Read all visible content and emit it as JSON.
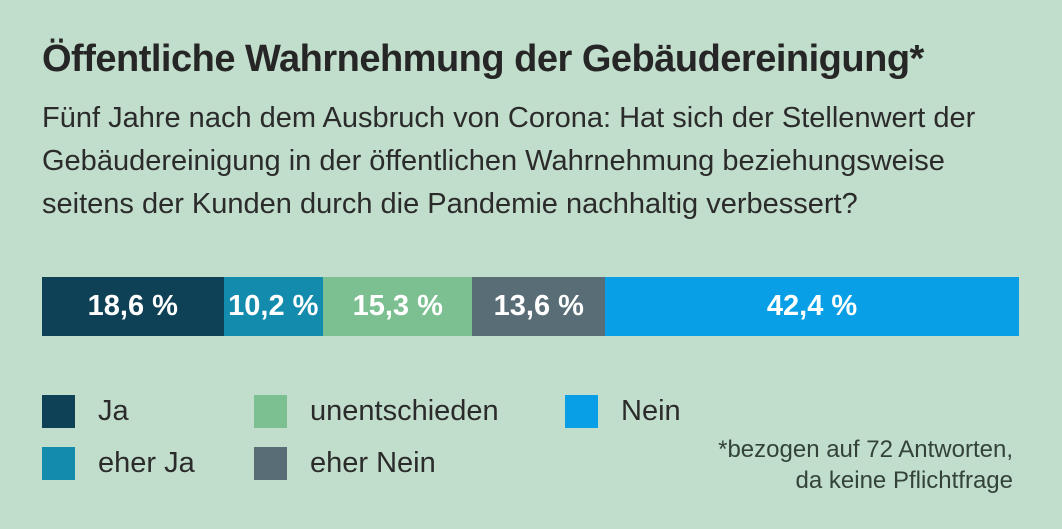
{
  "title": "Öffentliche Wahrnehmung der Gebäudereinigung*",
  "subtitle": {
    "lines": [
      "Fünf Jahre nach dem Ausbruch von Corona: Hat sich der Stellenwert der",
      "Gebäudereinigung in der öffentlichen Wahrnehmung beziehungsweise",
      "seitens der Kunden durch die Pandemie nachhaltig verbessert?"
    ]
  },
  "chart_data": {
    "type": "bar",
    "orientation": "horizontal-stacked",
    "unit": "%",
    "title": "Öffentliche Wahrnehmung der Gebäudereinigung*",
    "categories": [
      "Ja",
      "eher Ja",
      "unentschieden",
      "eher Nein",
      "Nein"
    ],
    "values": [
      18.6,
      10.2,
      15.3,
      13.6,
      42.4
    ],
    "labels": [
      "18,6 %",
      "10,2 %",
      "15,3 %",
      "13,6 %",
      "42,4 %"
    ],
    "colors": [
      "#0e4156",
      "#128bac",
      "#7cc091",
      "#596d77",
      "#089fe6"
    ],
    "xlim": [
      0,
      100
    ],
    "legend_position": "bottom",
    "footnote": "*bezogen auf 72 Antworten, da keine Pflichtfrage",
    "n_respondents": 72
  },
  "legend": {
    "items": [
      {
        "label": "Ja",
        "color": "#0e4156"
      },
      {
        "label": "eher Ja",
        "color": "#128bac"
      },
      {
        "label": "unentschieden",
        "color": "#7cc091"
      },
      {
        "label": "eher Nein",
        "color": "#596d77"
      },
      {
        "label": "Nein",
        "color": "#089fe6"
      }
    ]
  },
  "footnote": {
    "lines": [
      "*bezogen auf 72 Antworten,",
      "da keine Pflichtfrage"
    ]
  },
  "colors": {
    "background": "#c1ddcb",
    "heading_text": "#262626",
    "body_text": "#2b2b2b",
    "bar_label_text": "#ffffff",
    "footnote_text": "#33433a"
  }
}
